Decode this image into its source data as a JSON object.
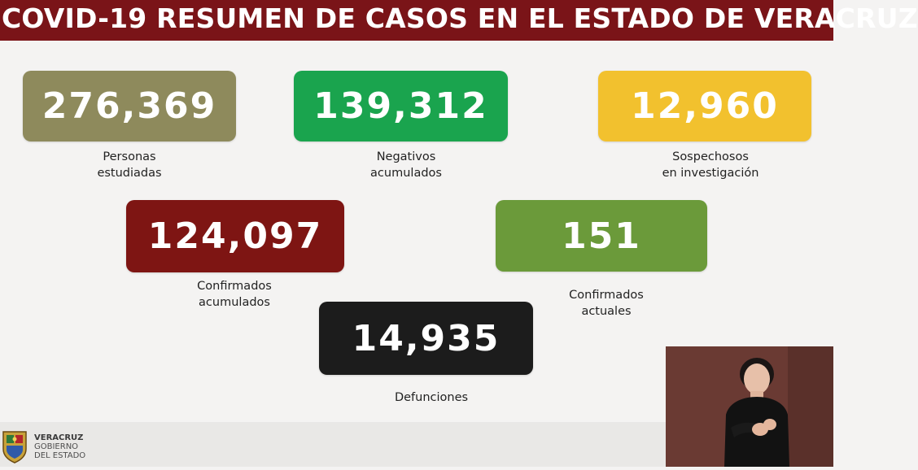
{
  "header": {
    "title": "COVID-19 RESUMEN DE CASOS EN EL ESTADO DE VERACRUZ"
  },
  "stats": [
    {
      "value": "276,369",
      "label_line1": "Personas",
      "label_line2": "estudiadas",
      "color": "#8e8a5c"
    },
    {
      "value": "139,312",
      "label_line1": "Negativos",
      "label_line2": "acumulados",
      "color": "#1aa44e"
    },
    {
      "value": "12,960",
      "label_line1": "Sospechosos",
      "label_line2": "en investigación",
      "color": "#f2c12e"
    },
    {
      "value": "124,097",
      "label_line1": "Confirmados",
      "label_line2": "acumulados",
      "color": "#7e1513"
    },
    {
      "value": "151",
      "label_line1": "Confirmados",
      "label_line2": "actuales",
      "color": "#6b9a3a"
    },
    {
      "value": "14,935",
      "label_line1": "Defunciones",
      "label_line2": "",
      "color": "#1c1c1c"
    }
  ],
  "footer": {
    "logo_line1": "VERACRUZ",
    "logo_line2": "GOBIERNO",
    "logo_line3": "DEL ESTADO"
  }
}
